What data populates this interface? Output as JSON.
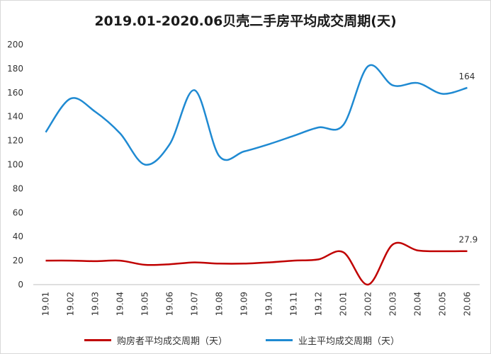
{
  "chart_data": {
    "type": "line",
    "title": "2019.01-2020.06贝壳二手房平均成交周期(天)",
    "categories": [
      "19.01",
      "19.02",
      "19.03",
      "19.04",
      "19.05",
      "19.06",
      "19.07",
      "19.08",
      "19.09",
      "19.10",
      "19.11",
      "19.12",
      "20.01",
      "20.02",
      "20.03",
      "20.04",
      "20.05",
      "20.06"
    ],
    "ylim": [
      0,
      200
    ],
    "yticks": [
      0,
      20,
      40,
      60,
      80,
      100,
      120,
      140,
      160,
      180,
      200
    ],
    "grid": false,
    "legend_position": "bottom",
    "series": [
      {
        "name": "购房者平均成交周期（天）",
        "color": "#c00000",
        "values": [
          20,
          20,
          19.5,
          20,
          16.5,
          17,
          18.5,
          17.5,
          17.5,
          18.5,
          20,
          21,
          27,
          0,
          33.5,
          28.5,
          27.8,
          27.9
        ],
        "end_label": "27.9"
      },
      {
        "name": "业主平均成交周期（天）",
        "color": "#1f8ad2",
        "values": [
          127,
          155,
          144,
          126,
          100,
          117,
          162,
          107,
          111,
          117,
          124,
          131,
          133,
          182,
          166,
          168,
          159,
          164
        ],
        "end_label": "164"
      }
    ]
  }
}
